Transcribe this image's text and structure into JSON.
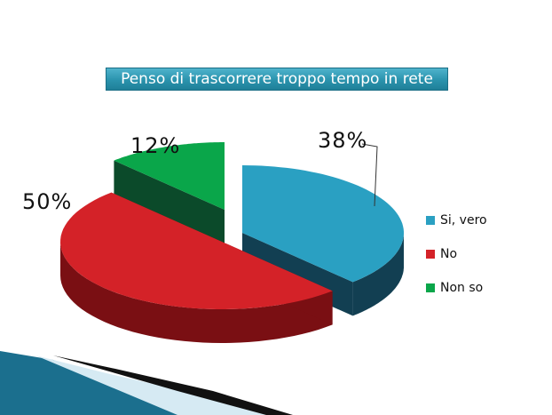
{
  "chart_data": {
    "type": "pie",
    "title": "Penso di trascorrere troppo tempo in rete",
    "slices": [
      {
        "label": "Si, vero",
        "value": 38,
        "display": "38%",
        "color": "#2aa0c2",
        "side": "#123f52"
      },
      {
        "label": "No",
        "value": 50,
        "display": "50%",
        "color": "#d42228",
        "side": "#7a0f13"
      },
      {
        "label": "Non so",
        "value": 12,
        "display": "12%",
        "color": "#0aa64a",
        "side": "#0b4a2a"
      }
    ],
    "legend_position": "right",
    "style": "3d-exploded"
  },
  "legend": {
    "items": [
      {
        "label": "Si, vero",
        "color": "#2aa0c2"
      },
      {
        "label": "No",
        "color": "#d42228"
      },
      {
        "label": "Non so",
        "color": "#0aa64a"
      }
    ]
  }
}
